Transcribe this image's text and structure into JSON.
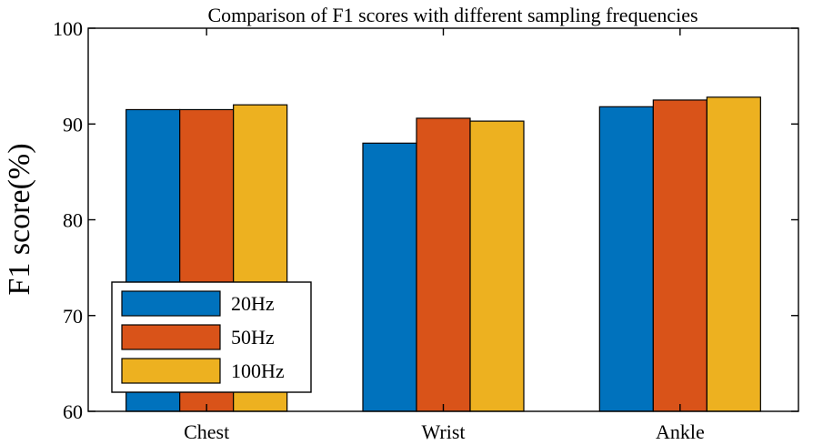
{
  "chart_data": {
    "type": "bar",
    "title": "Comparison of F1 scores with different sampling frequencies",
    "xlabel": "",
    "ylabel": "F1 score(%)",
    "categories": [
      "Chest",
      "Wrist",
      "Ankle"
    ],
    "series": [
      {
        "name": "20Hz",
        "values": [
          91.5,
          88.0,
          91.8
        ],
        "color": "#0072BD"
      },
      {
        "name": "50Hz",
        "values": [
          91.5,
          90.6,
          92.5
        ],
        "color": "#D95319"
      },
      {
        "name": "100Hz",
        "values": [
          92.0,
          90.3,
          92.8
        ],
        "color": "#EDB120"
      }
    ],
    "ylim": [
      60,
      100
    ],
    "yticks": [
      "60",
      "70",
      "80",
      "90",
      "100"
    ],
    "grid": false,
    "legend_position": "bottom-left"
  }
}
